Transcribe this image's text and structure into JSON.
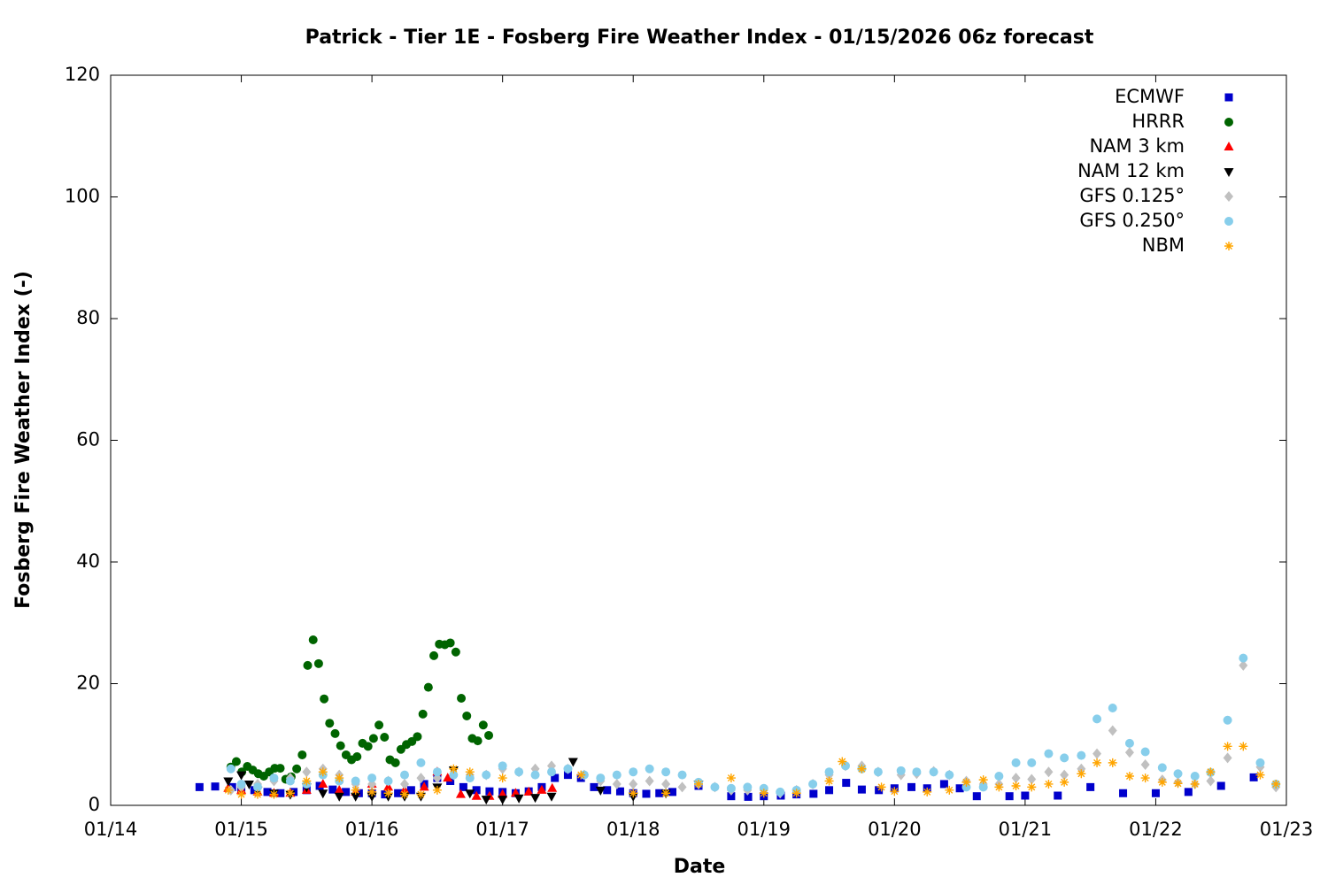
{
  "chart_data": {
    "type": "scatter",
    "title": "Patrick - Tier 1E - Fosberg Fire Weather Index - 01/15/2026 06z forecast",
    "x_label": "Date",
    "y_label": "Fosberg Fire Weather Index (-)",
    "xlim": [
      0,
      9
    ],
    "xticks": [
      {
        "value": 0,
        "label": "01/14"
      },
      {
        "value": 1,
        "label": "01/15"
      },
      {
        "value": 2,
        "label": "01/16"
      },
      {
        "value": 3,
        "label": "01/17"
      },
      {
        "value": 4,
        "label": "01/18"
      },
      {
        "value": 5,
        "label": "01/19"
      },
      {
        "value": 6,
        "label": "01/20"
      },
      {
        "value": 7,
        "label": "01/21"
      },
      {
        "value": 8,
        "label": "01/22"
      },
      {
        "value": 9,
        "label": "01/23"
      }
    ],
    "ylim": [
      0,
      120
    ],
    "yticks": [
      0,
      20,
      40,
      60,
      80,
      100,
      120
    ],
    "grid": false,
    "legend": "top-right",
    "series": [
      {
        "name": "ECMWF",
        "color": "#0000cc",
        "marker": "square",
        "x": [
          0.68,
          0.8,
          0.93,
          1.0,
          1.1,
          1.2,
          1.3,
          1.4,
          1.5,
          1.6,
          1.7,
          1.8,
          1.9,
          2.0,
          2.1,
          2.2,
          2.3,
          2.4,
          2.5,
          2.6,
          2.7,
          2.8,
          2.9,
          3.0,
          3.1,
          3.2,
          3.3,
          3.4,
          3.5,
          3.6,
          3.7,
          3.8,
          3.9,
          4.0,
          4.1,
          4.2,
          4.3,
          4.5,
          4.75,
          4.88,
          5.0,
          5.13,
          5.25,
          5.38,
          5.5,
          5.63,
          5.75,
          5.88,
          6.0,
          6.13,
          6.25,
          6.38,
          6.5,
          6.63,
          6.88,
          7.0,
          7.25,
          7.5,
          7.75,
          8.0,
          8.25,
          8.5,
          8.75
        ],
        "values": [
          3,
          3.1,
          3,
          2.8,
          2.5,
          2.2,
          2.0,
          2.2,
          2.5,
          3.2,
          2.6,
          2.2,
          2.0,
          2.0,
          1.8,
          2.0,
          2.5,
          3.5,
          4.5,
          4.0,
          3.0,
          2.5,
          2.3,
          2.2,
          2.0,
          2.3,
          3.0,
          4.5,
          5.0,
          4.5,
          3.0,
          2.5,
          2.3,
          2.0,
          1.9,
          2.0,
          2.2,
          3.2,
          1.5,
          1.4,
          1.5,
          1.6,
          1.8,
          1.9,
          2.5,
          3.7,
          2.6,
          2.5,
          2.8,
          3.0,
          2.8,
          3.5,
          2.8,
          1.5,
          1.5,
          1.6,
          1.6,
          3.0,
          2.0,
          2.0,
          2.2,
          3.2,
          4.6
        ]
      },
      {
        "name": "HRRR",
        "color": "#006400",
        "marker": "circle",
        "x": [
          0.92,
          0.962,
          1.004,
          1.046,
          1.088,
          1.13,
          1.172,
          1.214,
          1.256,
          1.298,
          1.34,
          1.382,
          1.424,
          1.466,
          1.508,
          1.55,
          1.592,
          1.634,
          1.676,
          1.718,
          1.76,
          1.802,
          1.844,
          1.886,
          1.928,
          1.97,
          2.012,
          2.054,
          2.096,
          2.138,
          2.18,
          2.222,
          2.264,
          2.306,
          2.348,
          2.39,
          2.432,
          2.474,
          2.516,
          2.558,
          2.6,
          2.642,
          2.684,
          2.726,
          2.768,
          2.81,
          2.852,
          2.894
        ],
        "values": [
          6.3,
          7.2,
          5.5,
          6.4,
          5.8,
          5.2,
          4.8,
          5.5,
          6.1,
          6.1,
          4.3,
          4.7,
          6.0,
          8.3,
          23.0,
          27.2,
          23.3,
          17.5,
          13.5,
          11.8,
          9.8,
          8.3,
          7.5,
          8.0,
          10.2,
          9.7,
          11.0,
          13.2,
          11.2,
          7.5,
          7.0,
          9.2,
          10.0,
          10.5,
          11.3,
          15.0,
          19.4,
          24.6,
          26.5,
          26.4,
          26.7,
          25.2,
          17.6,
          14.7,
          11.0,
          10.6,
          13.2,
          11.5
        ]
      },
      {
        "name": "NAM 3 km",
        "color": "#ff0000",
        "marker": "triangle-up",
        "x": [
          0.9,
          1.0,
          1.125,
          1.25,
          1.375,
          1.5,
          1.625,
          1.75,
          1.875,
          2.0,
          2.125,
          2.25,
          2.4,
          2.5,
          2.58,
          2.68,
          2.8,
          2.9,
          3.0,
          3.1,
          3.2,
          3.3,
          3.38
        ],
        "values": [
          2.8,
          2.5,
          2.2,
          2.0,
          2.0,
          2.5,
          3.5,
          2.5,
          2.2,
          3.5,
          3.0,
          2.5,
          3.0,
          5.5,
          4.5,
          1.8,
          1.5,
          1.5,
          1.8,
          2.0,
          2.2,
          2.5,
          2.8
        ]
      },
      {
        "name": "NAM 12 km",
        "color": "#000000",
        "marker": "triangle-down",
        "x": [
          0.9,
          1.0,
          1.06,
          1.125,
          1.25,
          1.375,
          1.5,
          1.625,
          1.75,
          1.875,
          2.0,
          2.125,
          2.25,
          2.375,
          2.5,
          2.625,
          2.75,
          2.875,
          3.0,
          3.125,
          3.25,
          3.375,
          3.54,
          3.75,
          4.0,
          4.25,
          4.5
        ],
        "values": [
          4,
          5,
          3.5,
          2.5,
          2.0,
          1.8,
          3.0,
          2.0,
          1.5,
          1.5,
          1.5,
          1.5,
          1.5,
          1.5,
          3.0,
          5.8,
          2.0,
          1.0,
          1.0,
          1.2,
          1.3,
          1.5,
          7.2,
          2.5,
          1.5,
          2.0,
          3.5
        ]
      },
      {
        "name": "GFS 0.125°",
        "color": "#c0c0c0",
        "marker": "diamond",
        "x": [
          0.92,
          1.0,
          1.125,
          1.25,
          1.375,
          1.5,
          1.625,
          1.75,
          1.875,
          2.0,
          2.125,
          2.25,
          2.375,
          2.5,
          2.625,
          2.75,
          2.875,
          3.0,
          3.125,
          3.25,
          3.375,
          3.5,
          3.625,
          3.75,
          3.875,
          4.0,
          4.125,
          4.25,
          4.375,
          4.5,
          4.625,
          4.75,
          4.875,
          5.0,
          5.125,
          5.25,
          5.375,
          5.5,
          5.625,
          5.75,
          5.875,
          6.05,
          6.17,
          6.3,
          6.42,
          6.55,
          6.68,
          6.8,
          6.93,
          7.05,
          7.18,
          7.3,
          7.43,
          7.55,
          7.67,
          7.8,
          7.92,
          8.05,
          8.17,
          8.3,
          8.42,
          8.55,
          8.67,
          8.8,
          8.92
        ],
        "values": [
          2.5,
          3.0,
          3.5,
          4.0,
          4.5,
          5.5,
          6.0,
          5.0,
          3.5,
          3.5,
          4.0,
          3.5,
          4.5,
          4.5,
          5.0,
          5.0,
          5.0,
          6.0,
          5.5,
          6.0,
          6.5,
          6.0,
          5.0,
          4.0,
          3.5,
          3.5,
          4.0,
          3.5,
          3.0,
          3.5,
          3.0,
          2.5,
          2.5,
          2.5,
          2.0,
          2.5,
          3.5,
          5.0,
          6.5,
          6.5,
          5.5,
          5.0,
          5.2,
          5.6,
          5.0,
          4.0,
          3.5,
          3.5,
          4.5,
          4.3,
          5.5,
          5.0,
          6.0,
          8.5,
          12.3,
          8.7,
          6.7,
          4.2,
          3.8,
          3.5,
          4.0,
          7.8,
          23.0,
          6.3,
          3.0
        ]
      },
      {
        "name": "GFS 0.250°",
        "color": "#87ceeb",
        "marker": "circle",
        "x": [
          0.92,
          1.0,
          1.125,
          1.25,
          1.375,
          1.5,
          1.625,
          1.75,
          1.875,
          2.0,
          2.125,
          2.25,
          2.375,
          2.5,
          2.625,
          2.75,
          2.875,
          3.0,
          3.125,
          3.25,
          3.375,
          3.5,
          3.625,
          3.75,
          3.875,
          4.0,
          4.125,
          4.25,
          4.375,
          4.5,
          4.625,
          4.75,
          4.875,
          5.0,
          5.125,
          5.25,
          5.375,
          5.5,
          5.625,
          5.75,
          5.875,
          6.05,
          6.17,
          6.3,
          6.42,
          6.55,
          6.68,
          6.8,
          6.93,
          7.05,
          7.18,
          7.3,
          7.43,
          7.55,
          7.67,
          7.8,
          7.92,
          8.05,
          8.17,
          8.3,
          8.42,
          8.55,
          8.67,
          8.8,
          8.92
        ],
        "values": [
          6.0,
          3.5,
          3.0,
          4.5,
          4.0,
          3.5,
          5.0,
          4.0,
          4.0,
          4.5,
          4.0,
          5.0,
          7.0,
          5.5,
          5.0,
          4.5,
          5.0,
          6.5,
          5.5,
          5.0,
          5.5,
          6.0,
          5.0,
          4.5,
          5.0,
          5.5,
          6.0,
          5.5,
          5.0,
          3.8,
          3.0,
          2.8,
          3.0,
          2.8,
          2.2,
          2.5,
          3.5,
          5.5,
          6.5,
          6.0,
          5.5,
          5.7,
          5.5,
          5.5,
          5.0,
          3.0,
          3.0,
          4.8,
          7.0,
          7.0,
          8.5,
          7.8,
          8.2,
          14.2,
          16.0,
          10.2,
          8.8,
          6.2,
          5.2,
          4.8,
          5.4,
          14.0,
          24.2,
          7.0,
          3.5
        ]
      },
      {
        "name": "NBM",
        "color": "#ffa500",
        "marker": "asterisk",
        "x": [
          0.9,
          1.0,
          1.125,
          1.25,
          1.375,
          1.5,
          1.625,
          1.75,
          1.875,
          2.0,
          2.125,
          2.25,
          2.375,
          2.5,
          2.625,
          2.75,
          3.0,
          3.6,
          4.0,
          4.25,
          4.5,
          4.75,
          5.0,
          5.25,
          5.5,
          5.6,
          5.75,
          5.9,
          6.0,
          6.25,
          6.42,
          6.55,
          6.68,
          6.8,
          6.93,
          7.05,
          7.18,
          7.3,
          7.43,
          7.55,
          7.67,
          7.8,
          7.92,
          8.05,
          8.17,
          8.3,
          8.42,
          8.55,
          8.67,
          8.8,
          8.92
        ],
        "values": [
          2.5,
          1.8,
          1.8,
          1.8,
          2.0,
          4.0,
          5.5,
          4.5,
          2.5,
          2.2,
          2.0,
          1.8,
          1.8,
          2.5,
          6.0,
          5.5,
          4.5,
          5.0,
          2.0,
          2.0,
          3.5,
          4.5,
          2.0,
          2.0,
          4.0,
          7.2,
          6.0,
          3.0,
          2.3,
          2.2,
          2.5,
          3.8,
          4.2,
          3.0,
          3.2,
          3.0,
          3.5,
          3.8,
          5.2,
          7.0,
          7.0,
          4.8,
          4.5,
          3.8,
          3.6,
          3.5,
          5.5,
          9.7,
          9.7,
          5.0,
          3.5
        ]
      }
    ]
  }
}
